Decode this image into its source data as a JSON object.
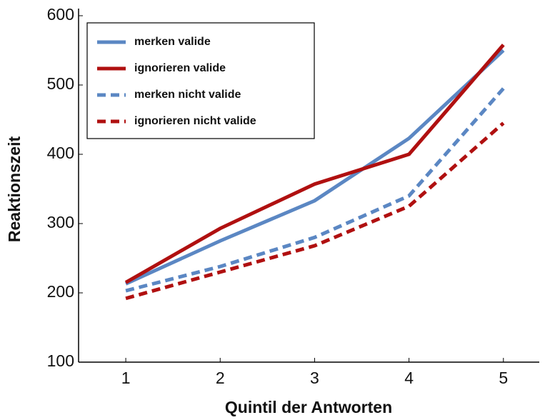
{
  "chart_data": {
    "type": "line",
    "xlabel": "Quintil der Antworten",
    "ylabel": "Reaktionszeit",
    "x": [
      1,
      2,
      3,
      4,
      5
    ],
    "xlim": [
      0.5,
      5.38
    ],
    "xticks": [
      1,
      2,
      3,
      4,
      5
    ],
    "ylim": [
      100,
      600
    ],
    "yticks": [
      100,
      200,
      300,
      400,
      500,
      600
    ],
    "legend": "upper left",
    "series": [
      {
        "name": "merken valide",
        "color": "#5b87c3",
        "linestyle": "solid",
        "values": [
          213,
          275,
          333,
          423,
          550
        ]
      },
      {
        "name": "ignorieren valide",
        "color": "#b01010",
        "linestyle": "solid",
        "values": [
          215,
          293,
          357,
          400,
          558
        ]
      },
      {
        "name": "merken nicht valide",
        "color": "#5b87c3",
        "linestyle": "dashed",
        "values": [
          203,
          238,
          280,
          340,
          495
        ]
      },
      {
        "name": "ignorieren nicht valide",
        "color": "#b01010",
        "linestyle": "dashed",
        "values": [
          192,
          230,
          268,
          325,
          445
        ]
      }
    ]
  }
}
